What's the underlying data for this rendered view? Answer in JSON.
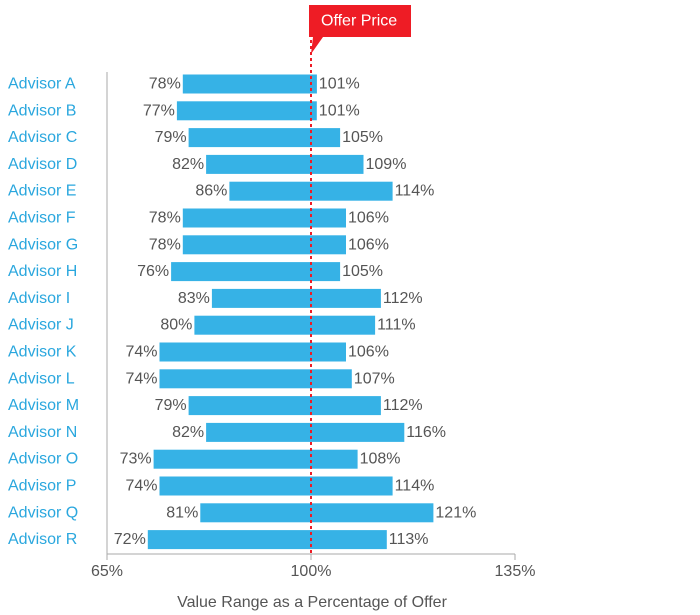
{
  "chart_data": {
    "type": "bar",
    "subtype": "floating-range-horizontal",
    "categories": [
      "Advisor A",
      "Advisor B",
      "Advisor C",
      "Advisor D",
      "Advisor E",
      "Advisor F",
      "Advisor G",
      "Advisor H",
      "Advisor I",
      "Advisor J",
      "Advisor K",
      "Advisor L",
      "Advisor M",
      "Advisor N",
      "Advisor O",
      "Advisor P",
      "Advisor Q",
      "Advisor R"
    ],
    "low": [
      78,
      77,
      79,
      82,
      86,
      78,
      78,
      76,
      83,
      80,
      74,
      74,
      79,
      82,
      73,
      74,
      81,
      72
    ],
    "high": [
      101,
      101,
      105,
      109,
      114,
      106,
      106,
      105,
      112,
      111,
      106,
      107,
      112,
      116,
      108,
      114,
      121,
      113
    ],
    "value_suffix": "%",
    "xlabel": "Value Range as a Percentage of Offer",
    "ylabel": "",
    "xlim": [
      65,
      135
    ],
    "xticks": [
      65,
      100,
      135
    ],
    "xtick_labels": [
      "65%",
      "100%",
      "135%"
    ],
    "reference_line": {
      "value": 100,
      "label": "Offer Price",
      "color": "#ee1c25",
      "style": "dashed"
    },
    "bar_color": "#36b2e6",
    "category_label_color": "#2aa7de",
    "grid": false,
    "legend": "none"
  }
}
